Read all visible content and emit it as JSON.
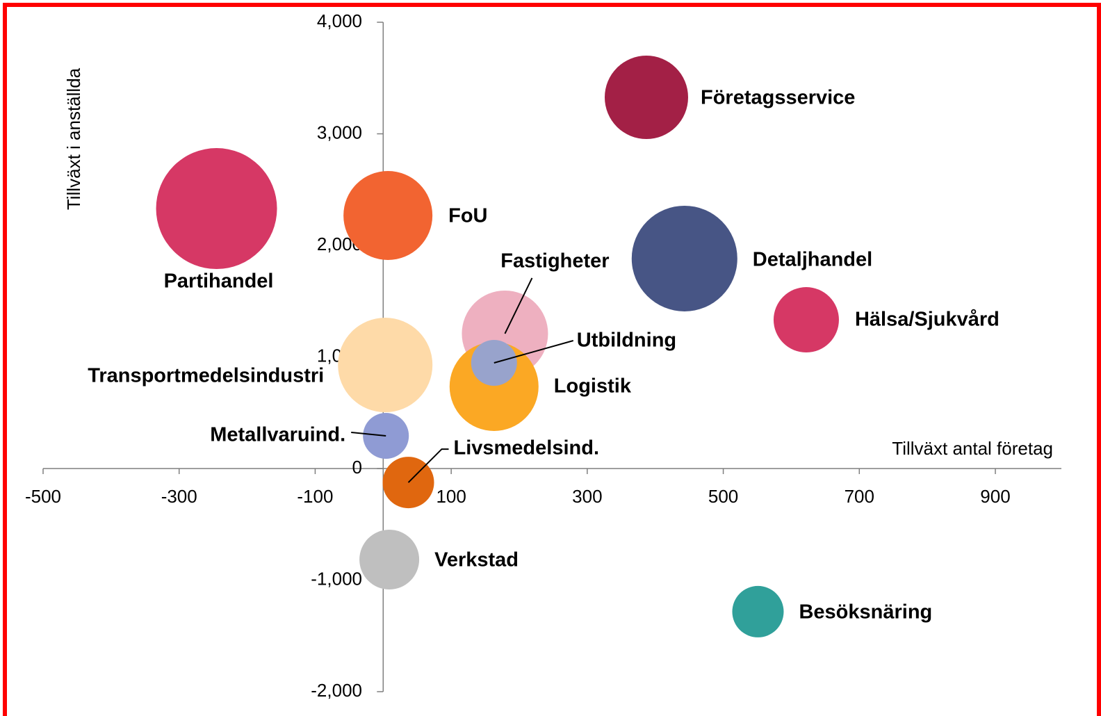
{
  "chart_data": {
    "type": "bubble",
    "x_label": "Tillväxt antal företag",
    "y_label": "Tillväxt i anställda",
    "xlim": [
      -500,
      1000
    ],
    "ylim": [
      -2000,
      4000
    ],
    "xticks": [
      -500,
      -300,
      -100,
      100,
      300,
      500,
      700,
      900
    ],
    "yticks": [
      {
        "value": -2000,
        "label": "-2,000"
      },
      {
        "value": -1000,
        "label": "-1,000"
      },
      0,
      {
        "value": 1000,
        "label": "1,000"
      },
      {
        "value": 2000,
        "label": "2,000"
      },
      {
        "value": 3000,
        "label": "3,000"
      },
      {
        "value": 4000,
        "label": "4,000"
      }
    ],
    "points": [
      {
        "name": "Företagsservice",
        "x": 387,
        "y": 3327,
        "size": 60,
        "color": "#a32046"
      },
      {
        "name": "Partihandel",
        "x": -245,
        "y": 2330,
        "size": 87,
        "color": "#d63865"
      },
      {
        "name": "FoU",
        "x": 7,
        "y": 2268,
        "size": 64,
        "color": "#f26431"
      },
      {
        "name": "Detaljhandel",
        "x": 443,
        "y": 1882,
        "size": 76,
        "color": "#475585"
      },
      {
        "name": "Hälsa/Sjukvård",
        "x": 622,
        "y": 1333,
        "size": 47,
        "color": "#d63865"
      },
      {
        "name": "Transportmedelsindustri",
        "x": 3,
        "y": 928,
        "size": 68,
        "color": "#fedaa8"
      },
      {
        "name": "Fastigheter",
        "x": 179,
        "y": 1209,
        "size": 62,
        "color": "#eeb0c0"
      },
      {
        "name": "Logistik",
        "x": 163,
        "y": 735,
        "size": 64,
        "color": "#fba824"
      },
      {
        "name": "Utbildning",
        "x": 163,
        "y": 947,
        "size": 33,
        "color": "#98a3cc"
      },
      {
        "name": "Metallvaruind.",
        "x": 4,
        "y": 293,
        "size": 33,
        "color": "#8f9bd4"
      },
      {
        "name": "Livsmedelsind.",
        "x": 37,
        "y": -125,
        "size": 37,
        "color": "#e0670f"
      },
      {
        "name": "Verkstad",
        "x": 9,
        "y": -816,
        "size": 43,
        "color": "#bfbfbf"
      },
      {
        "name": "Besöksnäring",
        "x": 551,
        "y": -1283,
        "size": 37,
        "color": "#30a09a"
      }
    ]
  }
}
